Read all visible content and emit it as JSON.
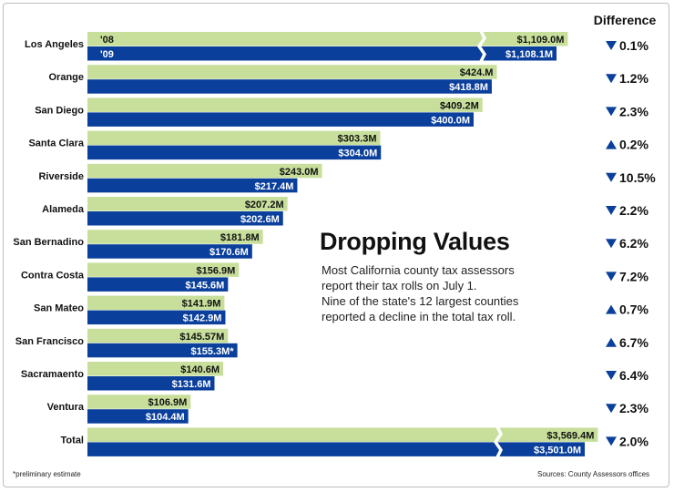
{
  "colors": {
    "bar_08": "#c8df9c",
    "bar_09": "#0a3f9c",
    "arrow": "#0a3f9c",
    "text": "#111111"
  },
  "header": {
    "difference": "Difference"
  },
  "title": "Dropping Values",
  "subtitle_lines": [
    "Most California county tax assessors",
    "report their tax rolls on July 1.",
    "Nine of the state's 12 largest counties",
    "reported a decline in the total tax roll."
  ],
  "footnote": "*preliminary estimate",
  "sources": "Sources: County Assessors offices",
  "chart_data": {
    "type": "bar",
    "orientation": "horizontal",
    "units": "$ millions",
    "series": [
      {
        "name": "'08",
        "values": [
          1109.0,
          424.0,
          409.2,
          303.3,
          243.0,
          207.2,
          181.8,
          156.9,
          141.9,
          145.57,
          140.6,
          106.9,
          3569.4
        ]
      },
      {
        "name": "'09",
        "values": [
          1108.1,
          418.8,
          400.0,
          304.0,
          217.4,
          202.6,
          170.6,
          145.6,
          142.9,
          155.3,
          131.6,
          104.4,
          3501.0
        ]
      }
    ],
    "categories": [
      "Los Angeles",
      "Orange",
      "San Diego",
      "Santa Clara",
      "Riverside",
      "Alameda",
      "San Bernadino",
      "Contra Costa",
      "San Mateo",
      "San Francisco",
      "Sacramaento",
      "Ventura",
      "Total"
    ],
    "labels_08": [
      "$1,109.0M",
      "$424.M",
      "$409.2M",
      "$303.3M",
      "$243.0M",
      "$207.2M",
      "$181.8M",
      "$156.9M",
      "$141.9M",
      "$145.57M",
      "$140.6M",
      "$106.9M",
      "$3,569.4M"
    ],
    "labels_09": [
      "$1,108.1M",
      "$418.8M",
      "$400.0M",
      "$304.0M",
      "$217.4M",
      "$202.6M",
      "$170.6M",
      "$145.6M",
      "$142.9M",
      "$155.3M*",
      "$131.6M",
      "$104.4M",
      "$3,501.0M"
    ],
    "broken_bars": [
      0,
      12
    ],
    "difference": {
      "direction": [
        "down",
        "down",
        "down",
        "up",
        "down",
        "down",
        "down",
        "down",
        "up",
        "up",
        "down",
        "down",
        "down"
      ],
      "values": [
        "0.1%",
        "1.2%",
        "2.3%",
        "0.2%",
        "10.5%",
        "2.2%",
        "6.2%",
        "7.2%",
        "0.7%",
        "6.7%",
        "6.4%",
        "2.3%",
        "2.0%"
      ]
    }
  }
}
